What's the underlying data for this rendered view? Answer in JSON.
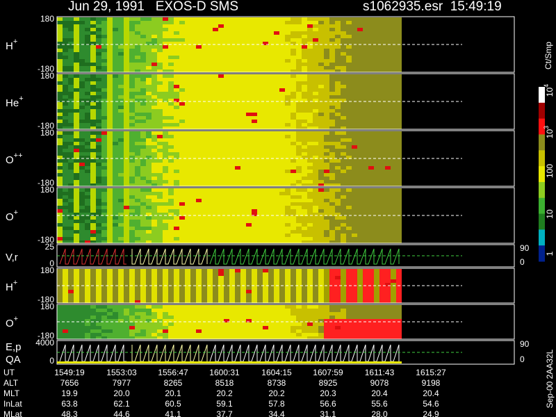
{
  "header": {
    "title": "Jun 29, 1991   EXOS-D SMS",
    "file": "s1062935.esr  15:49:19"
  },
  "panels": [
    {
      "label": "H",
      "charge": "+",
      "ticks": [
        "180",
        "-180"
      ]
    },
    {
      "label": "He",
      "charge": "+",
      "ticks": [
        "180",
        "-180"
      ]
    },
    {
      "label": "O",
      "charge": "++",
      "ticks": [
        "180",
        "-180"
      ]
    },
    {
      "label": "O",
      "charge": "+",
      "ticks": [
        "180",
        "-180"
      ]
    },
    {
      "label": "V,r",
      "ticks": [
        "25",
        "0"
      ],
      "right_ticks": [
        "90",
        "0"
      ]
    },
    {
      "label": "H",
      "charge": "+",
      "ticks": [
        "180",
        "-180"
      ]
    },
    {
      "label": "O",
      "charge": "+",
      "ticks": [
        "180",
        "-180"
      ]
    },
    {
      "label": "E,p",
      "label2": "QA",
      "ticks": [
        "4000",
        "0"
      ],
      "right_ticks": [
        "90",
        "0"
      ]
    }
  ],
  "colorbar": {
    "unit": "Ct/Smp",
    "labels": [
      {
        "text": "10",
        "exp": "4"
      },
      {
        "text": "10",
        "exp": "3"
      },
      {
        "text": "100"
      },
      {
        "text": "10"
      },
      {
        "text": "1"
      }
    ]
  },
  "footer": {
    "rows": [
      {
        "name": "UT",
        "values": [
          "1549:19",
          "1553:03",
          "1556:47",
          "1600:31",
          "1604:15",
          "1607:59",
          "1611:43",
          "1615:27"
        ]
      },
      {
        "name": "ALT",
        "values": [
          "7656",
          "7977",
          "8265",
          "8518",
          "8738",
          "8925",
          "9078",
          "9198"
        ]
      },
      {
        "name": "MLT",
        "values": [
          "19.9",
          "20.0",
          "20.1",
          "20.2",
          "20.2",
          "20.3",
          "20.4",
          "20.4"
        ]
      },
      {
        "name": "InLat",
        "values": [
          "63.8",
          "62.1",
          "60.5",
          "59.1",
          "57.8",
          "56.6",
          "55.6",
          "54.6"
        ]
      },
      {
        "name": "MLat",
        "values": [
          "48.3",
          "44.6",
          "41.1",
          "37.7",
          "34.4",
          "31.1",
          "28.0",
          "24.9"
        ]
      }
    ]
  },
  "stamp": "Sep-00 2AA32L"
}
